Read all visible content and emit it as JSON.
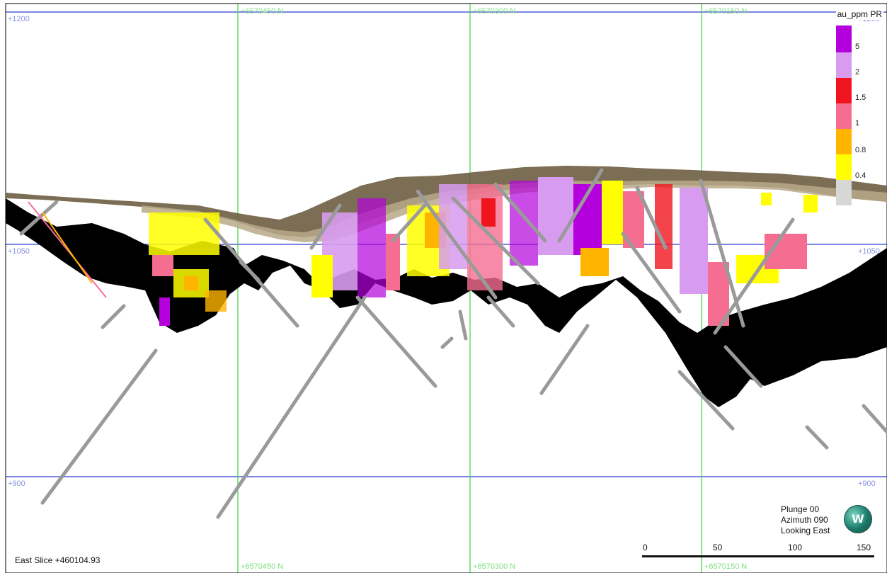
{
  "view": {
    "north_grid_labels": [
      "+6570450 N",
      "+6570300 N",
      "+6570150 N"
    ],
    "elevation_labels": [
      "+1200",
      "+1050",
      "+900"
    ],
    "slice": "East Slice +460104.93",
    "orientation": {
      "plunge": "Plunge 00",
      "azimuth": "Azimuth 090",
      "looking": "Looking East"
    },
    "compass_letter": "W",
    "scale_ticks": [
      "0",
      "50",
      "100",
      "150"
    ]
  },
  "legend": {
    "title": "au_ppm PR",
    "bins": [
      {
        "label": "5",
        "color": "#b400dc"
      },
      {
        "label": "2",
        "color": "#d79bf0"
      },
      {
        "label": "1.5",
        "color": "#f0141e"
      },
      {
        "label": "1",
        "color": "#f56e91"
      },
      {
        "label": "0.8",
        "color": "#ffb400"
      },
      {
        "label": "0.4",
        "color": "#ffff00"
      },
      {
        "label": "",
        "color": "#d7d7d7"
      }
    ]
  },
  "colors": {
    "grid_north": "#3fd23f",
    "grid_elevation": "#2b3fd0",
    "surface": "#6e5e42",
    "wireframe": "#000000"
  }
}
